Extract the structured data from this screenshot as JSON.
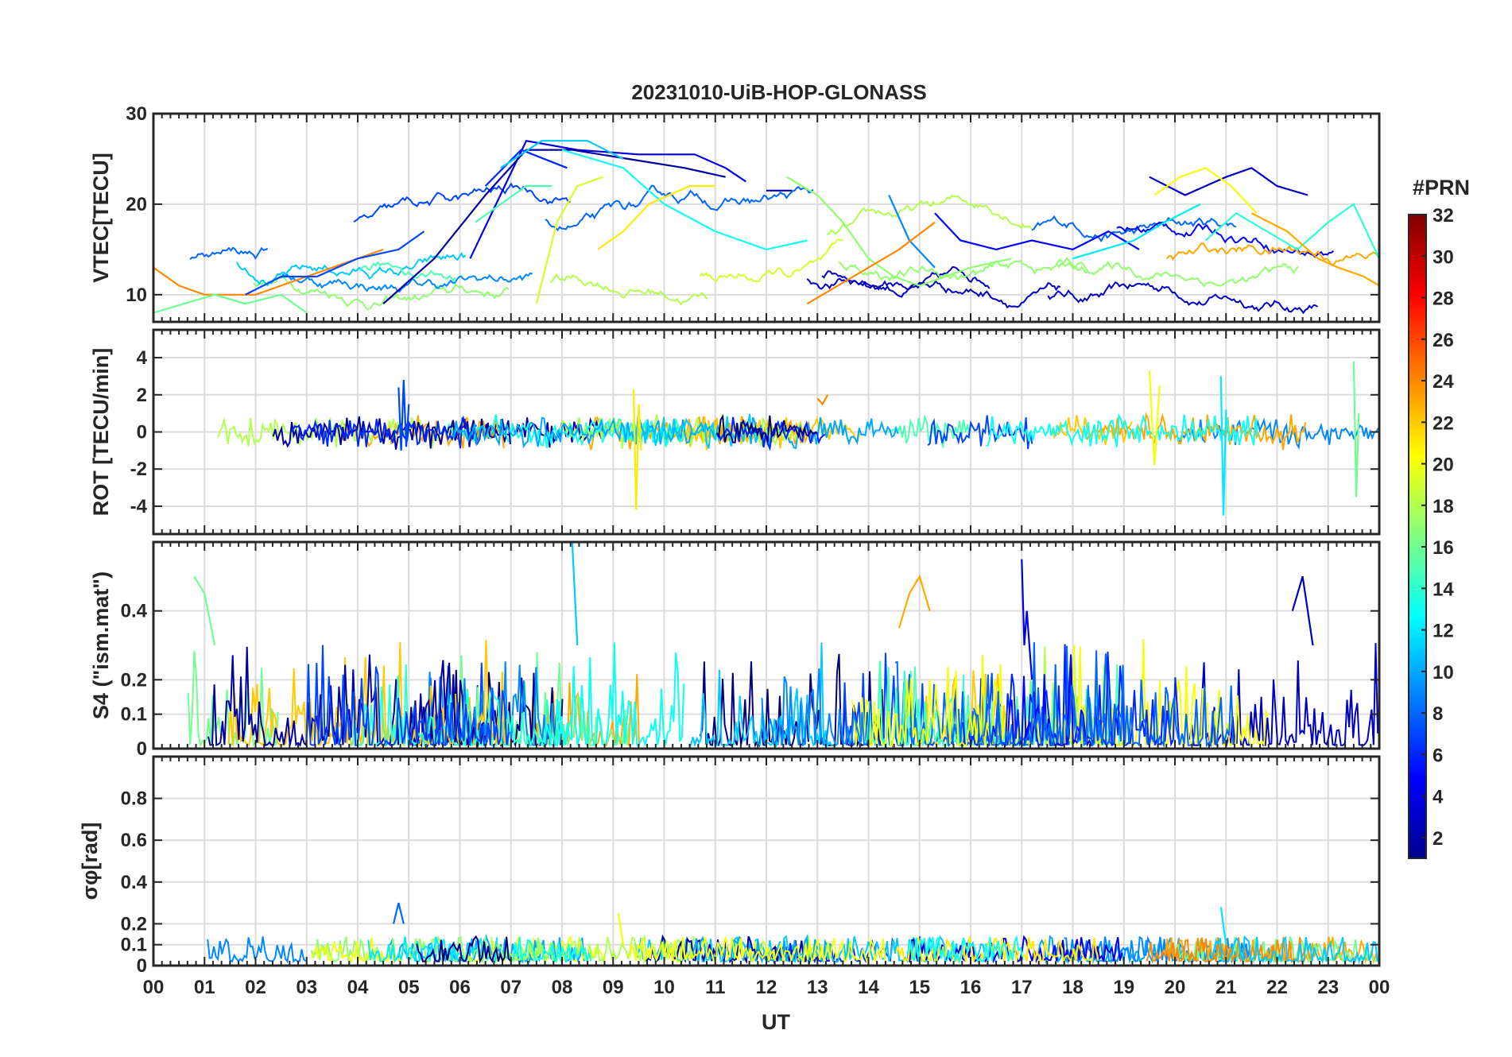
{
  "chart_data": {
    "type": "line",
    "title": "20231010-UiB-HOP-GLONASS",
    "xlabel": "UT",
    "x_ticks": [
      "00",
      "01",
      "02",
      "03",
      "04",
      "05",
      "06",
      "07",
      "08",
      "09",
      "10",
      "11",
      "12",
      "13",
      "14",
      "15",
      "16",
      "17",
      "18",
      "19",
      "20",
      "21",
      "22",
      "23",
      "00"
    ],
    "xlim": [
      0,
      24
    ],
    "grid": true,
    "colorbar": {
      "label": "#PRN",
      "range": [
        1,
        32
      ],
      "ticks": [
        "2",
        "4",
        "6",
        "8",
        "10",
        "12",
        "14",
        "16",
        "18",
        "20",
        "22",
        "24",
        "26",
        "28",
        "30",
        "32"
      ],
      "colormap": "jet"
    },
    "panels": [
      {
        "ylabel": "VTEC[TECU]",
        "ylim": [
          7,
          30
        ],
        "yticks": [
          "10",
          "20",
          "30"
        ],
        "series": [
          {
            "prn": 4,
            "x": [
              6.2,
              7.3,
              8.3,
              9.5,
              10.6,
              11.2,
              11.6
            ],
            "y": [
              14,
              27,
              26,
              25.5,
              25.5,
              24,
              22.5
            ]
          },
          {
            "prn": 3,
            "x": [
              12.0,
              12.5
            ],
            "y": [
              21.5,
              21.5
            ]
          },
          {
            "prn": 2,
            "x": [
              4.5,
              5.5,
              6.5,
              7.3,
              8.2,
              9.3,
              10.4,
              11.2
            ],
            "y": [
              9,
              14,
              21,
              26,
              26,
              25,
              24,
              23
            ]
          },
          {
            "prn": 6,
            "x": [
              6.5,
              7.2,
              8.1
            ],
            "y": [
              22,
              26,
              24
            ]
          },
          {
            "prn": 11,
            "x": [
              6.8,
              7.6,
              8.5,
              9.2
            ],
            "y": [
              24,
              27,
              27,
              25
            ]
          },
          {
            "prn": 13,
            "x": [
              8.0,
              9.2,
              10.0,
              11.0,
              12.0,
              12.8
            ],
            "y": [
              26,
              24,
              20,
              17,
              15,
              16
            ]
          },
          {
            "prn": 15,
            "x": [
              6.3,
              7.3,
              7.8
            ],
            "y": [
              18,
              22,
              22
            ]
          },
          {
            "prn": 19,
            "x": [
              7.5,
              7.9,
              8.3,
              8.8
            ],
            "y": [
              9,
              18,
              22,
              23
            ]
          },
          {
            "prn": 21,
            "x": [
              8.7,
              9.2,
              9.7,
              10.5,
              11.0
            ],
            "y": [
              15,
              17,
              20,
              22,
              22
            ]
          },
          {
            "prn": 17,
            "x": [
              12.4,
              13.0,
              13.5,
              14.0,
              14.5,
              15.0,
              16.0,
              16.8
            ],
            "y": [
              23,
              21,
              18,
              14,
              12,
              11,
              13,
              14
            ]
          },
          {
            "prn": 9,
            "x": [
              14.4,
              14.8,
              15.3
            ],
            "y": [
              21,
              16,
              13
            ]
          },
          {
            "prn": 5,
            "x": [
              15.3,
              15.8,
              16.5,
              17.2,
              18.0,
              18.7,
              19.3
            ],
            "y": [
              19,
              16,
              15,
              16,
              15,
              17,
              15
            ]
          },
          {
            "prn": 3,
            "x": [
              19.5,
              20.2,
              21.0,
              21.5,
              22.0,
              22.6
            ],
            "y": [
              23,
              21,
              23,
              24,
              22,
              21
            ]
          },
          {
            "prn": 20,
            "x": [
              19.6,
              20.1,
              20.6,
              21.1,
              21.6
            ],
            "y": [
              21,
              23,
              24,
              22,
              19
            ]
          },
          {
            "prn": 14,
            "x": [
              20.6,
              21.2,
              21.8,
              22.4,
              23.0,
              23.5,
              24.0
            ],
            "y": [
              16,
              19,
              17,
              15,
              18,
              20,
              14
            ]
          },
          {
            "prn": 23,
            "x": [
              21.5,
              22.2,
              22.8,
              23.2,
              23.7,
              24.0
            ],
            "y": [
              19,
              17,
              14,
              13,
              12,
              11
            ]
          },
          {
            "prn": 24,
            "x": [
              0.0,
              0.5,
              1.0,
              1.5,
              2.0,
              2.5,
              3.0,
              3.5,
              4.0,
              4.5
            ],
            "y": [
              13,
              11,
              10,
              10,
              10,
              11,
              12,
              13,
              14,
              15
            ]
          },
          {
            "prn": 7,
            "x": [
              1.8,
              2.5,
              3.2,
              4.0,
              4.8,
              5.3
            ],
            "y": [
              10,
              12,
              12,
              14,
              15,
              17
            ]
          },
          {
            "prn": 16,
            "x": [
              0.0,
              0.6,
              1.2,
              1.8,
              2.5,
              3.0
            ],
            "y": [
              8,
              9,
              10,
              9,
              10,
              8
            ]
          },
          {
            "prn": 24,
            "x": [
              12.8,
              13.4,
              14.0,
              14.6,
              15.3
            ],
            "y": [
              9,
              11,
              13,
              15,
              18
            ]
          },
          {
            "prn": 12,
            "x": [
              18.0,
              18.6,
              19.2,
              19.8,
              20.5
            ],
            "y": [
              14,
              15,
              16,
              18,
              20
            ]
          }
        ]
      },
      {
        "ylabel": "ROT [TECU/min]",
        "ylim": [
          -5.5,
          5.5
        ],
        "yticks": [
          "-4",
          "-2",
          "0",
          "2",
          "4"
        ],
        "series": [
          {
            "prn": 7,
            "x": [
              4.8,
              4.85,
              4.9,
              4.95,
              5.0
            ],
            "y": [
              2.4,
              -1.0,
              2.8,
              -0.8,
              1.5
            ]
          },
          {
            "prn": 21,
            "x": [
              9.4,
              9.45,
              9.5,
              9.55
            ],
            "y": [
              2.3,
              -4.2,
              1.5,
              -1.0
            ]
          },
          {
            "prn": 24,
            "x": [
              13.0,
              13.1,
              13.2
            ],
            "y": [
              1.8,
              1.5,
              2.0
            ]
          },
          {
            "prn": 20,
            "x": [
              19.5,
              19.6,
              19.7
            ],
            "y": [
              3.3,
              -1.8,
              2.5
            ]
          },
          {
            "prn": 12,
            "x": [
              20.9,
              20.95,
              21.0
            ],
            "y": [
              3.0,
              -4.5,
              1.2
            ]
          },
          {
            "prn": 16,
            "x": [
              23.5,
              23.55,
              23.6
            ],
            "y": [
              3.8,
              -3.5,
              1.0
            ]
          }
        ]
      },
      {
        "ylabel": "S4 (\"ism.mat\")",
        "ylim": [
          0,
          0.6
        ],
        "yticks": [
          "0",
          "0.1",
          "0.2",
          "0.4"
        ],
        "series": [
          {
            "prn": 4,
            "x": [
              17.0,
              17.05,
              17.1,
              17.2
            ],
            "y": [
              0.55,
              0.3,
              0.4,
              0.2
            ]
          },
          {
            "prn": 23,
            "x": [
              14.6,
              14.8,
              15.0,
              15.2
            ],
            "y": [
              0.35,
              0.45,
              0.5,
              0.4
            ]
          },
          {
            "prn": 16,
            "x": [
              0.8,
              1.0,
              1.2
            ],
            "y": [
              0.5,
              0.45,
              0.3
            ]
          },
          {
            "prn": 11,
            "x": [
              8.2,
              8.3
            ],
            "y": [
              0.6,
              0.3
            ]
          },
          {
            "prn": 3,
            "x": [
              22.3,
              22.5,
              22.7
            ],
            "y": [
              0.4,
              0.5,
              0.3
            ]
          }
        ]
      },
      {
        "ylabel": "σφ[rad]",
        "ylim": [
          0,
          1
        ],
        "yticks": [
          "0",
          "0.1",
          "0.2",
          "0.4",
          "0.6",
          "0.8"
        ],
        "series": [
          {
            "prn": 8,
            "x": [
              4.7,
              4.8,
              4.9
            ],
            "y": [
              0.2,
              0.3,
              0.2
            ]
          },
          {
            "prn": 12,
            "x": [
              20.9,
              21.0
            ],
            "y": [
              0.28,
              0.1
            ]
          },
          {
            "prn": 20,
            "x": [
              9.1,
              9.2
            ],
            "y": [
              0.25,
              0.1
            ]
          }
        ]
      }
    ]
  }
}
